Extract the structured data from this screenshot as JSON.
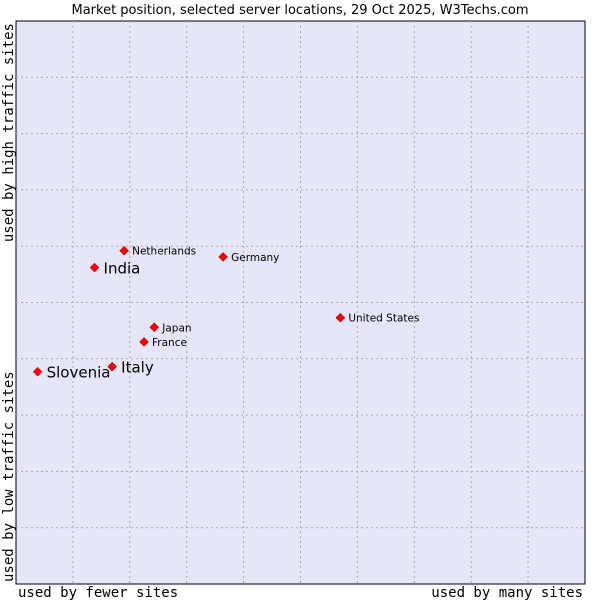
{
  "chart_data": {
    "type": "scatter",
    "title": "Market position, selected server locations, 29 Oct 2025, W3Techs.com",
    "xlabel_left": "used by fewer sites",
    "xlabel_right": "used by many sites",
    "ylabel_bottom": "used by low traffic sites",
    "ylabel_top": "used by high traffic sites",
    "xlim": [
      0,
      100
    ],
    "ylim": [
      0,
      100
    ],
    "grid": true,
    "colors": {
      "plot_bg": "#e6e6fa",
      "grid": "#aaaaaa",
      "point": "#ff0000",
      "border": "#000000"
    },
    "points": [
      {
        "name": "Netherlands",
        "x": 19.0,
        "y": 59.2,
        "highlight": false
      },
      {
        "name": "India",
        "x": 13.8,
        "y": 56.2,
        "highlight": true
      },
      {
        "name": "Germany",
        "x": 36.4,
        "y": 58.1,
        "highlight": false
      },
      {
        "name": "United States",
        "x": 57.0,
        "y": 47.3,
        "highlight": false
      },
      {
        "name": "Japan",
        "x": 24.3,
        "y": 45.6,
        "highlight": false
      },
      {
        "name": "France",
        "x": 22.5,
        "y": 43.0,
        "highlight": false
      },
      {
        "name": "Italy",
        "x": 16.9,
        "y": 38.6,
        "highlight": true
      },
      {
        "name": "Slovenia",
        "x": 3.8,
        "y": 37.7,
        "highlight": true
      }
    ]
  }
}
